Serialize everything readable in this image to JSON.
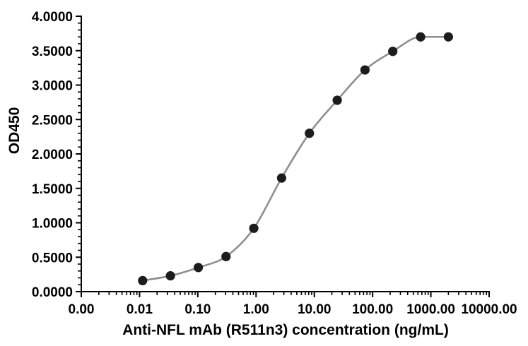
{
  "chart_data": {
    "type": "scatter",
    "subtype": "dose-response-curve",
    "title": "",
    "xlabel": "Anti-NFL mAb (R511n3) concentration (ng/mL)",
    "ylabel": "OD450",
    "x_scale": "log",
    "x_min": 0.001,
    "x_max": 10000,
    "y_min": 0,
    "y_max": 4,
    "x_ticks": [
      {
        "value": 0.001,
        "label": "0.00"
      },
      {
        "value": 0.01,
        "label": "0.01"
      },
      {
        "value": 0.1,
        "label": "0.10"
      },
      {
        "value": 1,
        "label": "1.00"
      },
      {
        "value": 10,
        "label": "10.00"
      },
      {
        "value": 100,
        "label": "100.00"
      },
      {
        "value": 1000,
        "label": "1000.00"
      },
      {
        "value": 10000,
        "label": "10000.00"
      }
    ],
    "y_ticks": [
      {
        "value": 0,
        "label": "0.0000"
      },
      {
        "value": 0.5,
        "label": "0.5000"
      },
      {
        "value": 1,
        "label": "1.0000"
      },
      {
        "value": 1.5,
        "label": "1.5000"
      },
      {
        "value": 2,
        "label": "2.0000"
      },
      {
        "value": 2.5,
        "label": "2.5000"
      },
      {
        "value": 3,
        "label": "3.0000"
      },
      {
        "value": 3.5,
        "label": "3.5000"
      },
      {
        "value": 4,
        "label": "4.0000"
      }
    ],
    "y_minor_step": 0.1,
    "grid": false,
    "legend": false,
    "series": [
      {
        "x": [
          0.0113,
          0.0339,
          0.102,
          0.305,
          0.914,
          2.74,
          8.23,
          24.7,
          74.1,
          222,
          667,
          2000
        ],
        "y": [
          0.16,
          0.23,
          0.35,
          0.51,
          0.92,
          1.65,
          2.3,
          2.78,
          3.22,
          3.49,
          3.7,
          3.7
        ],
        "marker": "circle",
        "marker_color": "#1c1c1c",
        "line_color": "#8f8f8f"
      }
    ],
    "axis_color": "#000000",
    "background": "#ffffff"
  }
}
